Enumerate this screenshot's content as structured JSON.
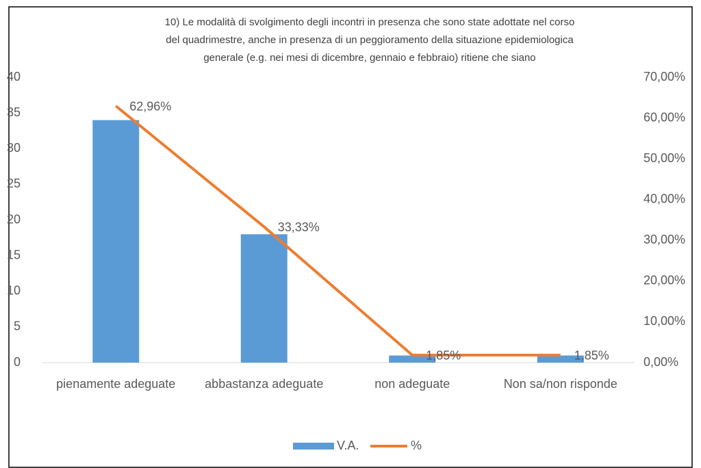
{
  "chart_data": {
    "type": "bar",
    "title": [
      "10) Le modalità di svolgimento degli incontri in presenza che sono state adottate nel corso",
      "del quadrimestre, anche in presenza di un peggioramento della situazione epidemiologica",
      "generale (e.g. nei mesi di dicembre, gennaio e febbraio) ritiene che siano"
    ],
    "categories": [
      "pienamente adeguate",
      "abbastanza adeguate",
      "non adeguate",
      "Non sa/non risponde"
    ],
    "series": [
      {
        "name": "V.A.",
        "type": "bar",
        "color": "#5b9bd5",
        "values": [
          34,
          18,
          1,
          1
        ]
      },
      {
        "name": "%",
        "type": "line",
        "axis": "y2",
        "color": "#ed7d31",
        "values": [
          62.96,
          33.33,
          1.85,
          1.85
        ],
        "value_labels": [
          "62,96%",
          "33,33%",
          "1,85%",
          "1,85%"
        ]
      }
    ],
    "ylim": [
      0,
      40
    ],
    "yticks": [
      0,
      5,
      10,
      15,
      20,
      25,
      30,
      35,
      40
    ],
    "y2lim": [
      0,
      70
    ],
    "y2ticks": [
      {
        "value": 0,
        "label": "0,00%"
      },
      {
        "value": 10,
        "label": "10,00%"
      },
      {
        "value": 20,
        "label": "20,00%"
      },
      {
        "value": 30,
        "label": "30,00%"
      },
      {
        "value": 40,
        "label": "40,00%"
      },
      {
        "value": 50,
        "label": "50,00%"
      },
      {
        "value": 60,
        "label": "60,00%"
      },
      {
        "value": 70,
        "label": "70,00%"
      }
    ],
    "grid": false,
    "legend": "bottom"
  }
}
